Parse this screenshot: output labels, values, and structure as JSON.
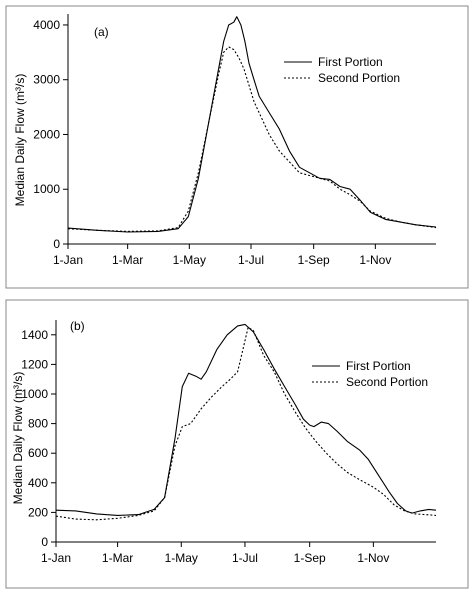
{
  "chart_data": [
    {
      "type": "line",
      "panel_label": "(a)",
      "ylabel": "Median Daily Flow (m³/s)",
      "x_unit": "day_of_year",
      "xlim": [
        1,
        365
      ],
      "ylim": [
        0,
        4200
      ],
      "y_ticks": [
        0,
        1000,
        2000,
        3000,
        4000
      ],
      "x_ticks": [
        {
          "label": "1-Jan",
          "day": 1
        },
        {
          "label": "1-Mar",
          "day": 60
        },
        {
          "label": "1-May",
          "day": 121
        },
        {
          "label": "1-Jul",
          "day": 182
        },
        {
          "label": "1-Sep",
          "day": 244
        },
        {
          "label": "1-Nov",
          "day": 305
        }
      ],
      "legend_position": "top-right",
      "series": [
        {
          "name": "First Portion",
          "style": "solid",
          "points": [
            [
              1,
              290
            ],
            [
              30,
              250
            ],
            [
              60,
              220
            ],
            [
              90,
              230
            ],
            [
              110,
              280
            ],
            [
              120,
              500
            ],
            [
              130,
              1200
            ],
            [
              140,
              2200
            ],
            [
              150,
              3200
            ],
            [
              155,
              3700
            ],
            [
              160,
              4000
            ],
            [
              165,
              4050
            ],
            [
              168,
              4150
            ],
            [
              172,
              4000
            ],
            [
              176,
              3700
            ],
            [
              180,
              3300
            ],
            [
              185,
              3000
            ],
            [
              190,
              2700
            ],
            [
              200,
              2400
            ],
            [
              210,
              2100
            ],
            [
              220,
              1700
            ],
            [
              230,
              1400
            ],
            [
              240,
              1300
            ],
            [
              250,
              1200
            ],
            [
              260,
              1180
            ],
            [
              270,
              1050
            ],
            [
              280,
              1000
            ],
            [
              290,
              800
            ],
            [
              300,
              580
            ],
            [
              315,
              450
            ],
            [
              330,
              400
            ],
            [
              345,
              350
            ],
            [
              365,
              310
            ]
          ]
        },
        {
          "name": "Second Portion",
          "style": "dotted",
          "points": [
            [
              1,
              280
            ],
            [
              30,
              250
            ],
            [
              60,
              230
            ],
            [
              90,
              240
            ],
            [
              110,
              300
            ],
            [
              120,
              600
            ],
            [
              130,
              1300
            ],
            [
              140,
              2200
            ],
            [
              150,
              3100
            ],
            [
              155,
              3500
            ],
            [
              160,
              3600
            ],
            [
              165,
              3550
            ],
            [
              170,
              3400
            ],
            [
              175,
              3200
            ],
            [
              180,
              2900
            ],
            [
              185,
              2600
            ],
            [
              190,
              2400
            ],
            [
              200,
              2000
            ],
            [
              210,
              1700
            ],
            [
              220,
              1500
            ],
            [
              230,
              1300
            ],
            [
              240,
              1250
            ],
            [
              250,
              1200
            ],
            [
              260,
              1150
            ],
            [
              270,
              1000
            ],
            [
              280,
              900
            ],
            [
              290,
              780
            ],
            [
              300,
              600
            ],
            [
              315,
              470
            ],
            [
              330,
              400
            ],
            [
              345,
              350
            ],
            [
              365,
              300
            ]
          ]
        }
      ]
    },
    {
      "type": "line",
      "panel_label": "(b)",
      "ylabel": "Median Daily Flow (m³/s)",
      "x_unit": "day_of_year",
      "xlim": [
        1,
        365
      ],
      "ylim": [
        0,
        1500
      ],
      "y_ticks": [
        0,
        200,
        400,
        600,
        800,
        1000,
        1200,
        1400
      ],
      "x_ticks": [
        {
          "label": "1-Jan",
          "day": 1
        },
        {
          "label": "1-Mar",
          "day": 60
        },
        {
          "label": "1-May",
          "day": 121
        },
        {
          "label": "1-Jul",
          "day": 182
        },
        {
          "label": "1-Sep",
          "day": 244
        },
        {
          "label": "1-Nov",
          "day": 305
        }
      ],
      "legend_position": "top-right",
      "series": [
        {
          "name": "First Portion",
          "style": "solid",
          "points": [
            [
              1,
              215
            ],
            [
              20,
              210
            ],
            [
              40,
              190
            ],
            [
              60,
              180
            ],
            [
              80,
              185
            ],
            [
              95,
              220
            ],
            [
              105,
              300
            ],
            [
              115,
              700
            ],
            [
              122,
              1050
            ],
            [
              128,
              1140
            ],
            [
              135,
              1120
            ],
            [
              140,
              1100
            ],
            [
              145,
              1150
            ],
            [
              155,
              1300
            ],
            [
              165,
              1400
            ],
            [
              175,
              1460
            ],
            [
              182,
              1470
            ],
            [
              190,
              1420
            ],
            [
              200,
              1300
            ],
            [
              210,
              1170
            ],
            [
              220,
              1050
            ],
            [
              230,
              930
            ],
            [
              238,
              830
            ],
            [
              244,
              790
            ],
            [
              248,
              780
            ],
            [
              255,
              810
            ],
            [
              262,
              800
            ],
            [
              270,
              750
            ],
            [
              280,
              680
            ],
            [
              292,
              620
            ],
            [
              300,
              560
            ],
            [
              310,
              450
            ],
            [
              320,
              340
            ],
            [
              328,
              260
            ],
            [
              336,
              210
            ],
            [
              342,
              195
            ],
            [
              350,
              210
            ],
            [
              358,
              220
            ],
            [
              365,
              215
            ]
          ]
        },
        {
          "name": "Second Portion",
          "style": "dotted",
          "points": [
            [
              1,
              175
            ],
            [
              20,
              155
            ],
            [
              40,
              150
            ],
            [
              60,
              160
            ],
            [
              80,
              180
            ],
            [
              95,
              210
            ],
            [
              105,
              300
            ],
            [
              115,
              650
            ],
            [
              122,
              780
            ],
            [
              130,
              800
            ],
            [
              140,
              900
            ],
            [
              150,
              980
            ],
            [
              160,
              1050
            ],
            [
              168,
              1100
            ],
            [
              175,
              1150
            ],
            [
              180,
              1300
            ],
            [
              185,
              1450
            ],
            [
              190,
              1430
            ],
            [
              200,
              1260
            ],
            [
              210,
              1150
            ],
            [
              220,
              1000
            ],
            [
              230,
              880
            ],
            [
              240,
              770
            ],
            [
              250,
              680
            ],
            [
              260,
              600
            ],
            [
              270,
              530
            ],
            [
              280,
              470
            ],
            [
              292,
              420
            ],
            [
              305,
              370
            ],
            [
              315,
              320
            ],
            [
              325,
              250
            ],
            [
              335,
              210
            ],
            [
              345,
              190
            ],
            [
              355,
              185
            ],
            [
              365,
              180
            ]
          ]
        }
      ]
    }
  ]
}
